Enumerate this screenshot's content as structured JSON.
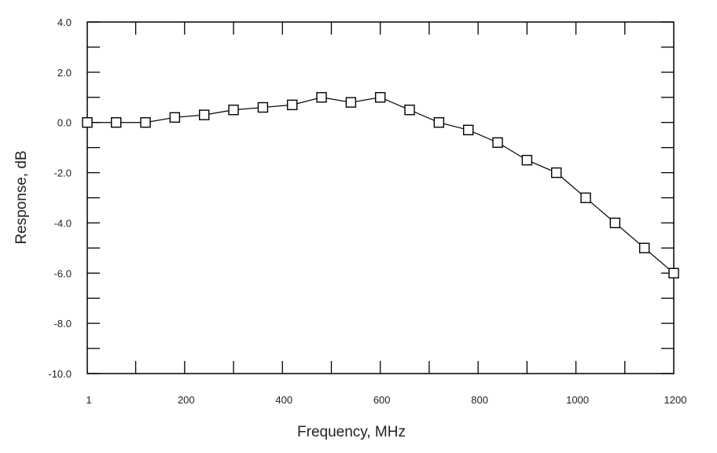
{
  "chart_data": {
    "type": "line",
    "title": "",
    "xlabel": "Frequency, MHz",
    "ylabel": "Response, dB",
    "xlim": [
      1,
      1200
    ],
    "ylim": [
      -10,
      4
    ],
    "x_ticks": [
      1,
      200,
      400,
      600,
      800,
      1000,
      1200
    ],
    "x_tick_labels": [
      "1",
      "200",
      "400",
      "600",
      "800",
      "1000",
      "1200"
    ],
    "y_ticks": [
      4,
      2,
      0,
      -2,
      -4,
      -6,
      -8,
      -10
    ],
    "y_tick_labels": [
      "4.0",
      "2.0",
      "0.0",
      "-2.0",
      "-4.0",
      "-6.0",
      "-8.0",
      "-10.0"
    ],
    "grid": false,
    "marker": "open-square",
    "line_color": "#000000",
    "series": [
      {
        "x": [
          1,
          60,
          120,
          180,
          240,
          300,
          360,
          420,
          480,
          540,
          600,
          660,
          720,
          780,
          840,
          900,
          960,
          1020,
          1080,
          1140,
          1200
        ],
        "y": [
          0,
          0,
          0,
          0.2,
          0.3,
          0.5,
          0.6,
          0.7,
          1.0,
          0.8,
          1.0,
          0.5,
          0,
          -0.3,
          -0.8,
          -1.5,
          -2.0,
          -3.0,
          -4.0,
          -5.0,
          -6.0
        ]
      }
    ]
  }
}
